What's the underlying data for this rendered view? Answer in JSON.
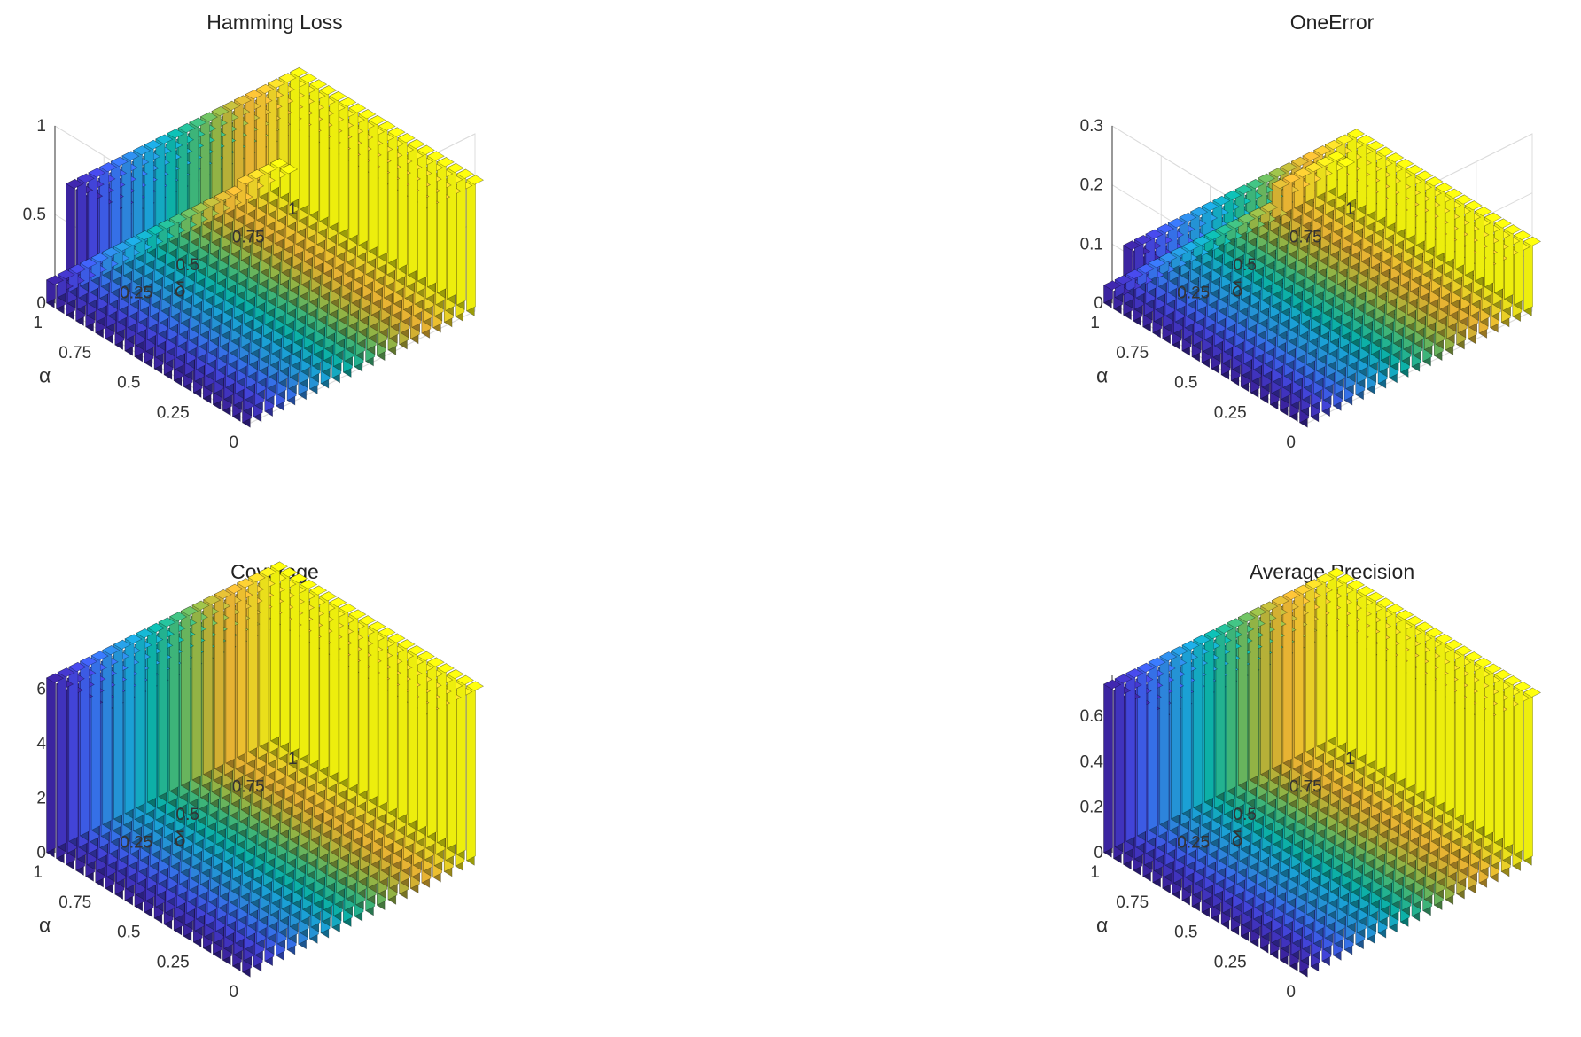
{
  "figure": {
    "colormap": [
      "#3e26a8",
      "#4743e1",
      "#3b6ff8",
      "#2b94e0",
      "#1aace0",
      "#0dbaad",
      "#3cbd82",
      "#8fbd4c",
      "#d4b834",
      "#fbbe36",
      "#f5dd28",
      "#f9fb0e"
    ]
  },
  "chart_data": [
    {
      "type": "bar3",
      "title": "Hamming Loss",
      "xlabel": "α",
      "ylabel": "δ",
      "x": [
        0,
        0.05,
        0.1,
        0.15,
        0.2,
        0.25,
        0.3,
        0.35,
        0.4,
        0.45,
        0.5,
        0.55,
        0.6,
        0.65,
        0.7,
        0.75,
        0.8,
        0.85,
        0.9,
        0.95,
        1
      ],
      "y": [
        0,
        0.05,
        0.1,
        0.15,
        0.2,
        0.25,
        0.3,
        0.35,
        0.4,
        0.45,
        0.5,
        0.55,
        0.6,
        0.65,
        0.7,
        0.75,
        0.8,
        0.85,
        0.9,
        0.95,
        1
      ],
      "zlim": [
        0,
        1
      ],
      "z_ticks": [
        "0",
        "0.5",
        "1"
      ],
      "x_ticks": [
        "0",
        "0.25",
        "0.5",
        "0.75",
        "1"
      ],
      "y_ticks": [
        "0.25",
        "0.5",
        "0.75",
        "1"
      ],
      "surface": {
        "base": 0.74,
        "drop_at_alpha": 0.95,
        "low_value": 0.13,
        "step_up_delta": 0.85,
        "step_up_value": 0.16
      },
      "grid": true,
      "legend": "none"
    },
    {
      "type": "bar3",
      "title": "OneError",
      "xlabel": "α",
      "ylabel": "δ",
      "x": [
        0,
        0.05,
        0.1,
        0.15,
        0.2,
        0.25,
        0.3,
        0.35,
        0.4,
        0.45,
        0.5,
        0.55,
        0.6,
        0.65,
        0.7,
        0.75,
        0.8,
        0.85,
        0.9,
        0.95,
        1
      ],
      "y": [
        0,
        0.05,
        0.1,
        0.15,
        0.2,
        0.25,
        0.3,
        0.35,
        0.4,
        0.45,
        0.5,
        0.55,
        0.6,
        0.65,
        0.7,
        0.75,
        0.8,
        0.85,
        0.9,
        0.95,
        1
      ],
      "zlim": [
        0,
        0.3
      ],
      "z_ticks": [
        "0",
        "0.1",
        "0.2",
        "0.3"
      ],
      "x_ticks": [
        "0",
        "0.25",
        "0.5",
        "0.75",
        "1"
      ],
      "y_ticks": [
        "0.25",
        "0.5",
        "0.75",
        "1"
      ],
      "surface": {
        "base": 0.118,
        "drop_at_alpha": 0.95,
        "low_value": 0.03,
        "step_up_delta": 0.75,
        "step_up_value": 0.06
      },
      "grid": true,
      "legend": "none"
    },
    {
      "type": "bar3",
      "title": "Coverage",
      "xlabel": "α",
      "ylabel": "δ",
      "x": [
        0,
        0.05,
        0.1,
        0.15,
        0.2,
        0.25,
        0.3,
        0.35,
        0.4,
        0.45,
        0.5,
        0.55,
        0.6,
        0.65,
        0.7,
        0.75,
        0.8,
        0.85,
        0.9,
        0.95,
        1
      ],
      "y": [
        0,
        0.05,
        0.1,
        0.15,
        0.2,
        0.25,
        0.3,
        0.35,
        0.4,
        0.45,
        0.5,
        0.55,
        0.6,
        0.65,
        0.7,
        0.75,
        0.8,
        0.85,
        0.9,
        0.95,
        1
      ],
      "zlim": [
        0,
        6.5
      ],
      "z_ticks": [
        "0",
        "2",
        "4",
        "6"
      ],
      "x_ticks": [
        "0",
        "0.25",
        "0.5",
        "0.75",
        "1"
      ],
      "y_ticks": [
        "0.25",
        "0.5",
        "0.75",
        "1"
      ],
      "surface": {
        "base": 6.4,
        "drop_at_alpha": 1.1,
        "low_value": 6.4,
        "step_up_delta": 1.1,
        "step_up_value": 0
      },
      "grid": false,
      "legend": "none"
    },
    {
      "type": "bar3",
      "title": "Average Precision",
      "xlabel": "α",
      "ylabel": "δ",
      "x": [
        0,
        0.05,
        0.1,
        0.15,
        0.2,
        0.25,
        0.3,
        0.35,
        0.4,
        0.45,
        0.5,
        0.55,
        0.6,
        0.65,
        0.7,
        0.75,
        0.8,
        0.85,
        0.9,
        0.95,
        1
      ],
      "y": [
        0,
        0.05,
        0.1,
        0.15,
        0.2,
        0.25,
        0.3,
        0.35,
        0.4,
        0.45,
        0.5,
        0.55,
        0.6,
        0.65,
        0.7,
        0.75,
        0.8,
        0.85,
        0.9,
        0.95,
        1
      ],
      "zlim": [
        0,
        0.78
      ],
      "z_ticks": [
        "0",
        "0.2",
        "0.4",
        "0.6"
      ],
      "x_ticks": [
        "0",
        "0.25",
        "0.5",
        "0.75",
        "1"
      ],
      "y_ticks": [
        "0.25",
        "0.5",
        "0.75",
        "1"
      ],
      "surface": {
        "base": 0.74,
        "drop_at_alpha": 1.1,
        "low_value": 0.74,
        "step_up_delta": 1.1,
        "step_up_value": 0
      },
      "grid": false,
      "legend": "none"
    }
  ]
}
